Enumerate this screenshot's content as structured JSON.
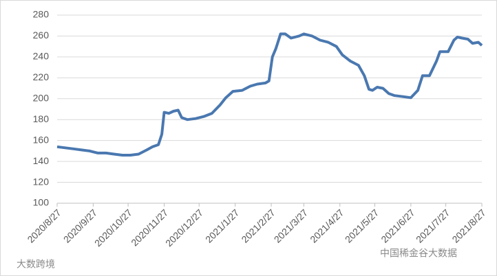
{
  "chart_data": {
    "type": "line",
    "x": [
      "2020/8/27",
      "2020/9/3",
      "2020/9/10",
      "2020/9/17",
      "2020/9/24",
      "2020/10/1",
      "2020/10/8",
      "2020/10/15",
      "2020/10/22",
      "2020/10/29",
      "2020/11/5",
      "2020/11/12",
      "2020/11/17",
      "2020/11/22",
      "2020/11/25",
      "2020/11/27",
      "2020/12/1",
      "2020/12/5",
      "2020/12/9",
      "2020/12/12",
      "2020/12/17",
      "2020/12/24",
      "2020/12/31",
      "2021/1/7",
      "2021/1/14",
      "2021/1/19",
      "2021/1/25",
      "2021/2/2",
      "2021/2/9",
      "2021/2/15",
      "2021/2/22",
      "2021/2/25",
      "2021/2/28",
      "2021/3/3",
      "2021/3/7",
      "2021/3/11",
      "2021/3/16",
      "2021/3/23",
      "2021/3/27",
      "2021/4/3",
      "2021/4/10",
      "2021/4/17",
      "2021/4/24",
      "2021/4/29",
      "2021/5/6",
      "2021/5/13",
      "2021/5/18",
      "2021/5/22",
      "2021/5/25",
      "2021/5/29",
      "2021/6/3",
      "2021/6/8",
      "2021/6/13",
      "2021/6/20",
      "2021/6/27",
      "2021/7/3",
      "2021/7/7",
      "2021/7/13",
      "2021/7/19",
      "2021/7/22",
      "2021/7/29",
      "2021/8/3",
      "2021/8/6",
      "2021/8/10",
      "2021/8/15",
      "2021/8/19",
      "2021/8/24",
      "2021/8/27"
    ],
    "series": [
      {
        "color": "#4a78b0",
        "values": [
          154,
          153,
          152,
          151,
          150,
          148,
          148,
          147,
          146,
          146,
          147,
          151,
          154,
          156,
          166,
          187,
          186,
          188,
          189,
          182,
          180,
          181,
          183,
          186,
          194,
          201,
          207,
          208,
          212,
          214,
          215,
          217,
          240,
          248,
          262,
          262,
          258,
          260,
          262,
          260,
          256,
          254,
          250,
          242,
          236,
          232,
          222,
          209,
          208,
          211,
          210,
          205,
          203,
          202,
          201,
          208,
          222,
          222,
          236,
          245,
          245,
          256,
          259,
          258,
          257,
          253,
          254,
          251
        ]
      }
    ],
    "xlim": [
      "2020/8/27",
      "2021/8/27"
    ],
    "xticks": [
      "2020/8/27",
      "2020/9/27",
      "2020/10/27",
      "2020/11/27",
      "2020/12/27",
      "2021/1/27",
      "2021/2/27",
      "2021/3/27",
      "2021/4/27",
      "2021/5/27",
      "2021/6/27",
      "2021/7/27",
      "2021/8/27"
    ],
    "ylim": [
      100,
      280
    ],
    "yticks": [
      100,
      120,
      140,
      160,
      180,
      200,
      220,
      240,
      260,
      280
    ],
    "grid": true,
    "watermarks": [
      "大数跨境",
      "中国稀金谷大数据"
    ]
  }
}
